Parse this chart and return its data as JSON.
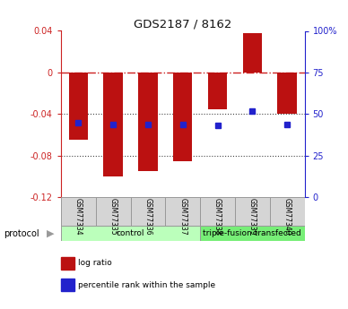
{
  "title": "GDS2187 / 8162",
  "samples": [
    "GSM77334",
    "GSM77335",
    "GSM77336",
    "GSM77337",
    "GSM77338",
    "GSM77339",
    "GSM77340"
  ],
  "log_ratio": [
    -0.065,
    -0.1,
    -0.095,
    -0.085,
    -0.035,
    0.038,
    -0.04
  ],
  "percentile_rank_pct": [
    45,
    44,
    44,
    44,
    43,
    52,
    44
  ],
  "bar_color": "#bb1111",
  "dot_color": "#2222cc",
  "left_ylim": [
    -0.12,
    0.04
  ],
  "left_yticks": [
    0.04,
    0.0,
    -0.04,
    -0.08,
    -0.12
  ],
  "left_yticklabels": [
    "0.04",
    "0",
    "-0.04",
    "-0.08",
    "-0.12"
  ],
  "right_yticks": [
    100,
    75,
    50,
    25,
    0
  ],
  "right_yticklabels": [
    "100%",
    "75",
    "50",
    "25",
    "0"
  ],
  "groups": [
    {
      "label": "control",
      "indices": [
        0,
        1,
        2,
        3
      ],
      "color": "#bbffbb"
    },
    {
      "label": "triple-fusion transfected",
      "indices": [
        4,
        5,
        6
      ],
      "color": "#77ee77"
    }
  ],
  "protocol_label": "protocol",
  "legend": [
    {
      "label": "log ratio",
      "color": "#bb1111"
    },
    {
      "label": "percentile rank within the sample",
      "color": "#2222cc"
    }
  ],
  "hline_zero_color": "#cc2222",
  "hline_dotted_color": "#444444",
  "bg_color": "#ffffff",
  "bar_width": 0.55
}
